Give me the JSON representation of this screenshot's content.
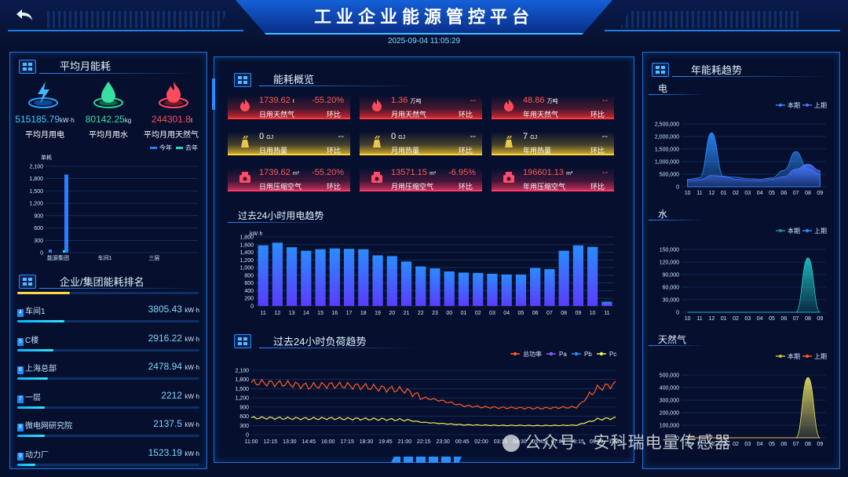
{
  "header": {
    "title": "工业企业能源管控平台",
    "datetime": "2025-09-04 11:05:29"
  },
  "avg_month": {
    "title": "平均月能耗",
    "stats": [
      {
        "value": "515185.79",
        "unit": "kW·h",
        "label": "平均月用电",
        "color": "#3fc8ff",
        "icon": "lightning-icon"
      },
      {
        "value": "80142.25",
        "unit": "kg",
        "label": "平均月用水",
        "color": "#37e0a0",
        "icon": "water-drop-icon"
      },
      {
        "value": "244301.8",
        "unit": "t",
        "label": "平均月用天然气",
        "color": "#ff4b5c",
        "icon": "flame-icon"
      }
    ],
    "legend": [
      "今年",
      "去年"
    ],
    "legend_colors": [
      "#2a7dff",
      "#27d4c8"
    ],
    "yunit": "单耗"
  },
  "ranking": {
    "title": "企业/集团能耗排名",
    "unit": "kW·h",
    "items": [
      {
        "idx": "4",
        "name": "车间1",
        "value": "3805.43",
        "frac": 0.26
      },
      {
        "idx": "5",
        "name": "C楼",
        "value": "2916.22",
        "frac": 0.2
      },
      {
        "idx": "6",
        "name": "上海总部",
        "value": "2478.94",
        "frac": 0.17
      },
      {
        "idx": "7",
        "name": "一层",
        "value": "2212",
        "frac": 0.15
      },
      {
        "idx": "8",
        "name": "微电网研究院",
        "value": "2137.5",
        "frac": 0.15
      },
      {
        "idx": "9",
        "name": "动力厂",
        "value": "1523.19",
        "frac": 0.1
      }
    ]
  },
  "overview": {
    "title": "能耗概览",
    "cards": [
      {
        "value": "1739.62",
        "unit": "t",
        "pct": "-55.20%",
        "label": "日用天然气",
        "ratio_label": "环比",
        "style": "red",
        "icon": "flame-icon",
        "value_color": "#ff5a5a",
        "pct_color": "#ff5a5a"
      },
      {
        "value": "1.36",
        "unit": "万吨",
        "pct": "--",
        "label": "月用天然气",
        "ratio_label": "环比",
        "style": "red",
        "icon": "flame-icon",
        "value_color": "#ff5a5a",
        "pct_color": "#ff5a5a"
      },
      {
        "value": "48.86",
        "unit": "万吨",
        "pct": "--",
        "label": "年用天然气",
        "ratio_label": "环比",
        "style": "red",
        "icon": "flame-icon",
        "value_color": "#ff5a5a",
        "pct_color": "#ff5a5a"
      },
      {
        "value": "0",
        "unit": "GJ",
        "pct": "--",
        "label": "日用热量",
        "ratio_label": "环比",
        "style": "yellow",
        "icon": "heat-icon",
        "value_color": "#ffffff",
        "pct_color": "#ffffff"
      },
      {
        "value": "0",
        "unit": "GJ",
        "pct": "--",
        "label": "月用热量",
        "ratio_label": "环比",
        "style": "yellow",
        "icon": "heat-icon",
        "value_color": "#ffffff",
        "pct_color": "#ffffff"
      },
      {
        "value": "7",
        "unit": "GJ",
        "pct": "--",
        "label": "年用热量",
        "ratio_label": "环比",
        "style": "yellow",
        "icon": "heat-icon",
        "value_color": "#ffffff",
        "pct_color": "#ffffff"
      },
      {
        "value": "1739.62",
        "unit": "m³",
        "pct": "-55.20%",
        "label": "日用压缩空气",
        "ratio_label": "环比",
        "style": "purple",
        "icon": "compressor-icon",
        "value_color": "#ff5a5a",
        "pct_color": "#ff5a5a"
      },
      {
        "value": "13571.15",
        "unit": "m³",
        "pct": "-6.95%",
        "label": "月用压缩空气",
        "ratio_label": "环比",
        "style": "purple",
        "icon": "compressor-icon",
        "value_color": "#ff5a5a",
        "pct_color": "#ff5a5a"
      },
      {
        "value": "196601.13",
        "unit": "m³",
        "pct": "--",
        "label": "年用压缩空气",
        "ratio_label": "环比",
        "style": "purple",
        "icon": "compressor-icon",
        "value_color": "#ff5a5a",
        "pct_color": "#ff5a5a"
      }
    ]
  },
  "elec24": {
    "title": "过去24小时用电趋势"
  },
  "load24": {
    "title": "过去24小时负荷趋势",
    "legend": [
      "总功率",
      "Pa",
      "Pb",
      "Pc"
    ],
    "legend_colors": [
      "#ff5a2a",
      "#8a5aff",
      "#2a8cff",
      "#f2ef5a"
    ]
  },
  "yearly": {
    "title": "年能耗趋势",
    "sub_titles": [
      "电",
      "水",
      "天然气"
    ],
    "legend_elec": [
      "本期",
      "上期"
    ],
    "legend_water": [
      "本期",
      "上期"
    ],
    "legend_gas": [
      "本期",
      "上期"
    ]
  },
  "watermark": "公众号 · 安科瑞电量传感器",
  "chart_data": [
    {
      "id": "avg-month-bars",
      "type": "bar",
      "ylabel": "单耗",
      "categories": [
        "能源集团",
        "车间1",
        "三层"
      ],
      "series": [
        {
          "name": "今年",
          "values": [
            1900,
            0,
            0
          ]
        },
        {
          "name": "去年",
          "values": [
            60,
            0,
            0
          ]
        }
      ],
      "yticks": [
        "0",
        "300",
        "600",
        "900",
        "1,200",
        "1,500",
        "1,800",
        "2,100"
      ],
      "ylim": [
        0,
        2100
      ]
    },
    {
      "id": "elec-24h",
      "type": "bar",
      "ylabel": "kW·h",
      "categories": [
        "11",
        "12",
        "13",
        "14",
        "15",
        "16",
        "17",
        "18",
        "19",
        "20",
        "21",
        "22",
        "23",
        "00",
        "01",
        "02",
        "03",
        "04",
        "05",
        "06",
        "07",
        "08",
        "09",
        "10",
        "11"
      ],
      "values": [
        1580,
        1650,
        1530,
        1440,
        1480,
        1500,
        1490,
        1480,
        1320,
        1300,
        1160,
        1030,
        980,
        900,
        870,
        860,
        840,
        820,
        820,
        990,
        960,
        1440,
        1580,
        1540,
        110
      ],
      "yticks": [
        "0",
        "200",
        "400",
        "600",
        "800",
        "1,000",
        "1,200",
        "1,400",
        "1,600",
        "1,800"
      ],
      "ylim": [
        0,
        1800
      ]
    },
    {
      "id": "load-24h",
      "type": "line",
      "xticks": [
        "11:00",
        "12:15",
        "13:30",
        "14:45",
        "16:00",
        "17:15",
        "18:30",
        "19:45",
        "21:00",
        "22:15",
        "23:30",
        "00:45",
        "02:00",
        "03:15",
        "04:30",
        "05:45",
        "07:00",
        "08:15",
        "09:30",
        "10:45"
      ],
      "yticks": [
        "0",
        "300",
        "600",
        "900",
        "1,200",
        "1,500",
        "1,800",
        "2,100"
      ],
      "ylim": [
        0,
        2100
      ],
      "series": [
        {
          "name": "总功率",
          "values": [
            1700,
            1680,
            1650,
            1580,
            1620,
            1600,
            1560,
            1500,
            1450,
            1200,
            1100,
            950,
            900,
            880,
            870,
            860,
            880,
            900,
            1500,
            1650
          ]
        },
        {
          "name": "Pc",
          "values": [
            550,
            540,
            530,
            520,
            530,
            520,
            510,
            500,
            480,
            400,
            360,
            320,
            310,
            300,
            300,
            295,
            300,
            310,
            500,
            540
          ]
        }
      ]
    },
    {
      "id": "yearly-elec",
      "type": "area",
      "categories": [
        "10",
        "11",
        "12",
        "01",
        "02",
        "03",
        "04",
        "05",
        "06",
        "07",
        "08",
        "09"
      ],
      "yticks": [
        "0",
        "500,000",
        "1,000,000",
        "1,500,000",
        "2,000,000",
        "2,500,000"
      ],
      "ylim": [
        0,
        2500000
      ],
      "series": [
        {
          "name": "本期",
          "values": [
            300000,
            350000,
            2150000,
            400000,
            380000,
            320000,
            300000,
            350000,
            650000,
            1400000,
            700000,
            500000
          ]
        },
        {
          "name": "上期",
          "values": [
            250000,
            280000,
            450000,
            420000,
            300000,
            260000,
            240000,
            300000,
            400000,
            700000,
            900000,
            650000
          ]
        }
      ]
    },
    {
      "id": "yearly-water",
      "type": "area",
      "categories": [
        "10",
        "11",
        "12",
        "01",
        "02",
        "03",
        "04",
        "05",
        "06",
        "07",
        "08",
        "09"
      ],
      "yticks": [
        "0",
        "30,000",
        "60,000",
        "90,000",
        "120,000",
        "150,000"
      ],
      "ylim": [
        0,
        150000
      ],
      "series": [
        {
          "name": "本期",
          "values": [
            0,
            0,
            0,
            0,
            0,
            0,
            0,
            0,
            0,
            0,
            130000,
            0
          ]
        },
        {
          "name": "上期",
          "values": [
            0,
            0,
            0,
            0,
            0,
            0,
            0,
            0,
            0,
            0,
            0,
            0
          ]
        }
      ]
    },
    {
      "id": "yearly-gas",
      "type": "area",
      "categories": [
        "10",
        "11",
        "12",
        "01",
        "02",
        "03",
        "04",
        "05",
        "06",
        "07",
        "08",
        "09"
      ],
      "yticks": [
        "0",
        "100,000",
        "200,000",
        "300,000",
        "400,000",
        "500,000"
      ],
      "ylim": [
        0,
        500000
      ],
      "series": [
        {
          "name": "本期",
          "values": [
            0,
            0,
            0,
            0,
            0,
            0,
            0,
            0,
            0,
            0,
            480000,
            0
          ]
        },
        {
          "name": "上期",
          "values": [
            0,
            0,
            0,
            0,
            0,
            0,
            0,
            0,
            0,
            0,
            0,
            0
          ]
        }
      ]
    }
  ]
}
